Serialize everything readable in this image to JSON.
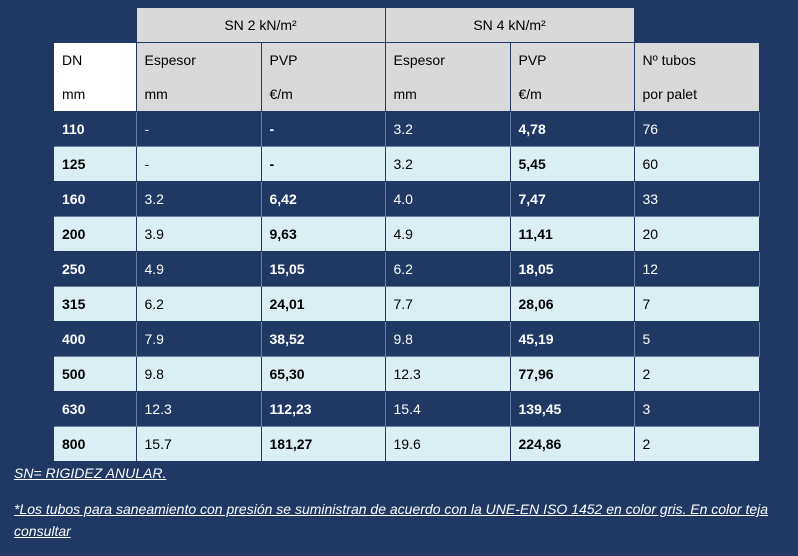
{
  "groups": {
    "sn2": "SN 2 kN/m²",
    "sn4": "SN 4 kN/m²"
  },
  "headers": [
    {
      "l1": "DN",
      "l2": "mm"
    },
    {
      "l1": "Espesor",
      "l2": "mm"
    },
    {
      "l1": "PVP",
      "l2": "€/m"
    },
    {
      "l1": "Espesor",
      "l2": "mm"
    },
    {
      "l1": "PVP",
      "l2": "€/m"
    },
    {
      "l1": "Nº tubos",
      "l2": "por palet"
    }
  ],
  "rows": [
    {
      "dn": "110",
      "esp2": "-",
      "pvp2": "-",
      "esp4": "3.2",
      "pvp4": "4,78",
      "tubos": "76"
    },
    {
      "dn": "125",
      "esp2": "-",
      "pvp2": "-",
      "esp4": "3.2",
      "pvp4": "5,45",
      "tubos": "60"
    },
    {
      "dn": "160",
      "esp2": "3.2",
      "pvp2": "6,42",
      "esp4": "4.0",
      "pvp4": "7,47",
      "tubos": "33"
    },
    {
      "dn": "200",
      "esp2": "3.9",
      "pvp2": "9,63",
      "esp4": "4.9",
      "pvp4": "11,41",
      "tubos": "20"
    },
    {
      "dn": "250",
      "esp2": "4.9",
      "pvp2": "15,05",
      "esp4": "6.2",
      "pvp4": "18,05",
      "tubos": "12"
    },
    {
      "dn": "315",
      "esp2": "6.2",
      "pvp2": "24,01",
      "esp4": "7.7",
      "pvp4": "28,06",
      "tubos": "7"
    },
    {
      "dn": "400",
      "esp2": "7.9",
      "pvp2": "38,52",
      "esp4": "9.8",
      "pvp4": "45,19",
      "tubos": "5"
    },
    {
      "dn": "500",
      "esp2": "9.8",
      "pvp2": "65,30",
      "esp4": "12.3",
      "pvp4": "77,96",
      "tubos": "2"
    },
    {
      "dn": "630",
      "esp2": "12.3",
      "pvp2": "112,23",
      "esp4": "15.4",
      "pvp4": "139,45",
      "tubos": "3"
    },
    {
      "dn": "800",
      "esp2": "15.7",
      "pvp2": "181,27",
      "esp4": "19.6",
      "pvp4": "224,86",
      "tubos": "2"
    }
  ],
  "notes": {
    "sn": " SN= RIGIDEZ ANULAR.",
    "presion": "*Los tubos para saneamiento con presión se suministran de acuerdo con la UNE-EN ISO 1452 en color gris. En color teja consultar"
  },
  "colors": {
    "background": "#1f3864",
    "header_gray": "#d9d9d9",
    "row_light": "#dbeef4"
  }
}
